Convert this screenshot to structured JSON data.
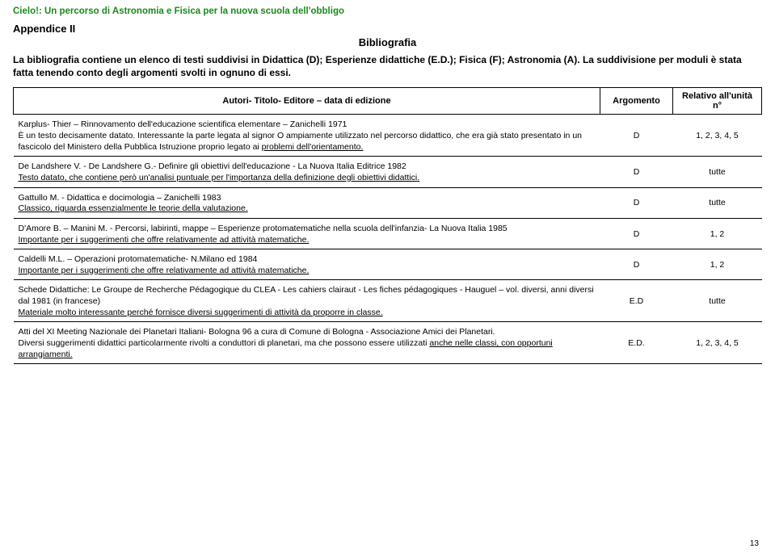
{
  "header": {
    "site_title": "Cielo!: Un percorso di Astronomia e Fisica per la nuova scuola dell'obbligo",
    "appendix": "Appendice II",
    "section": "Bibliografia",
    "intro": "La bibliografia contiene un elenco di testi suddivisi in Didattica (D); Esperienze didattiche (E.D.); Fisica (F); Astronomia (A). La suddivisione per moduli è stata fatta tenendo conto degli argomenti svolti in ognuno di essi."
  },
  "table": {
    "columns": {
      "main": "Autori- Titolo- Editore – data di edizione",
      "arg": "Argomento",
      "unit": "Relativo all'unità n°"
    },
    "rows": [
      {
        "main_pre": "Karplus- Thier – Rinnovamento dell'educazione scientifica elementare – Zanichelli 1971\nÈ un testo decisamente datato. Interessante la parte legata al signor O ampiamente utilizzato nel percorso didattico, che era già stato presentato in un fascicolo del Ministero della Pubblica Istruzione proprio legato ai ",
        "main_last": "problemi dell'orientamento.",
        "arg": "D",
        "unit": "1, 2, 3, 4, 5"
      },
      {
        "main_pre": "De Landshere V. - De Landshere G.- Definire gli obiettivi dell'educazione - La Nuova Italia Editrice 1982\n",
        "main_last": "Testo datato, che contiene però un'analisi puntuale per l'importanza della definizione degli obiettivi didattici.",
        "arg": "D",
        "unit": "tutte"
      },
      {
        "main_pre": "Gattullo M. - Didattica e docimologia – Zanichelli 1983\n",
        "main_last": "Classico, riguarda essenzialmente le teorie della valutazione.",
        "arg": "D",
        "unit": "tutte"
      },
      {
        "main_pre": "D'Amore B. – Manini M. - Percorsi, labirinti, mappe – Esperienze protomatematiche nella scuola dell'infanzia- La Nuova Italia 1985\n",
        "main_last": "Importante per i suggerimenti che offre relativamente ad attività matematiche.",
        "arg": "D",
        "unit": "1, 2"
      },
      {
        "main_pre": "Caldelli M.L. – Operazioni protomatematiche- N.Milano ed 1984\n",
        "main_last": "Importante per i suggerimenti che offre relativamente ad attività matematiche.",
        "arg": "D",
        "unit": "1, 2"
      },
      {
        "main_pre": "Schede Didattiche: Le Groupe de Recherche Pédagogique du CLEA - Les cahiers clairaut - Les fiches pédagogiques - Hauguel – vol. diversi, anni diversi dal 1981 (in francese)\n",
        "main_last": "Materiale molto interessante perché fornisce diversi suggerimenti di attività da proporre in classe.",
        "arg": "E.D",
        "unit": "tutte"
      },
      {
        "main_pre": "Atti del XI Meeting Nazionale dei Planetari Italiani- Bologna 96 a cura di Comune di Bologna - Associazione Amici dei Planetari.\nDiversi suggerimenti didattici particolarmente rivolti a conduttori di planetari, ma che possono essere utilizzati ",
        "main_last": "anche nelle classi, con opportuni arrangiamenti.",
        "arg": "E.D.",
        "unit": "1, 2, 3, 4, 5"
      }
    ]
  },
  "page_number": "13",
  "colors": {
    "title_green": "#1a8a1a",
    "text": "#000000",
    "border": "#000000",
    "bg": "#ffffff"
  }
}
